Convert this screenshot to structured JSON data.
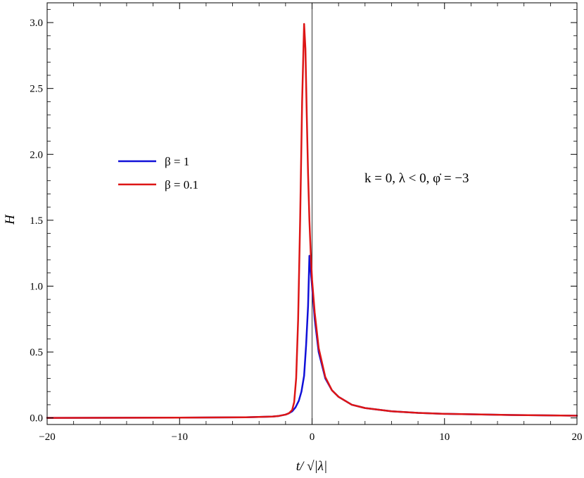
{
  "chart_data": {
    "type": "line",
    "xlabel": "t/ √|λ|",
    "ylabel": "H",
    "xlim": [
      -20,
      20
    ],
    "ylim": [
      -0.05,
      3.15
    ],
    "x_ticks": [
      -20,
      -10,
      0,
      10,
      20
    ],
    "x_tick_labels": [
      "−20",
      "−10",
      "0",
      "10",
      "20"
    ],
    "y_ticks": [
      0.0,
      0.5,
      1.0,
      1.5,
      2.0,
      2.5,
      3.0
    ],
    "y_tick_labels": [
      "0.0",
      "0.5",
      "1.0",
      "1.5",
      "2.0",
      "2.5",
      "3.0"
    ],
    "grid": false,
    "legend_position": "left",
    "annotation": "k = 0,    λ < 0,    φ̇ = −3",
    "series": [
      {
        "name": "β = 1",
        "color": "#1010d8",
        "x": [
          -20,
          -10,
          -5,
          -3,
          -2.5,
          -2,
          -1.75,
          -1.5,
          -1.25,
          -1,
          -0.8,
          -0.6,
          -0.45,
          -0.3,
          -0.2,
          0,
          0.2,
          0.5,
          1,
          1.5,
          2,
          3,
          4,
          6,
          8,
          10,
          15,
          20
        ],
        "y": [
          0,
          0.002,
          0.005,
          0.01,
          0.015,
          0.025,
          0.035,
          0.05,
          0.08,
          0.13,
          0.2,
          0.32,
          0.55,
          0.85,
          1.23,
          1.0,
          0.75,
          0.5,
          0.3,
          0.21,
          0.16,
          0.1,
          0.075,
          0.05,
          0.038,
          0.031,
          0.022,
          0.017
        ]
      },
      {
        "name": "β = 0.1",
        "color": "#dd1515",
        "x": [
          -20,
          -10,
          -5,
          -3,
          -2.5,
          -2,
          -1.75,
          -1.5,
          -1.35,
          -1.2,
          -1.05,
          -0.9,
          -0.75,
          -0.6,
          -0.5,
          -0.4,
          -0.3,
          -0.2,
          -0.1,
          0,
          0.2,
          0.5,
          1,
          1.5,
          2,
          3,
          4,
          6,
          8,
          10,
          15,
          20
        ],
        "y": [
          0,
          0.002,
          0.005,
          0.01,
          0.015,
          0.025,
          0.035,
          0.06,
          0.12,
          0.3,
          0.75,
          1.5,
          2.4,
          2.99,
          2.8,
          2.3,
          1.85,
          1.5,
          1.25,
          1.05,
          0.8,
          0.53,
          0.31,
          0.21,
          0.16,
          0.1,
          0.075,
          0.05,
          0.038,
          0.031,
          0.022,
          0.017
        ]
      }
    ]
  }
}
